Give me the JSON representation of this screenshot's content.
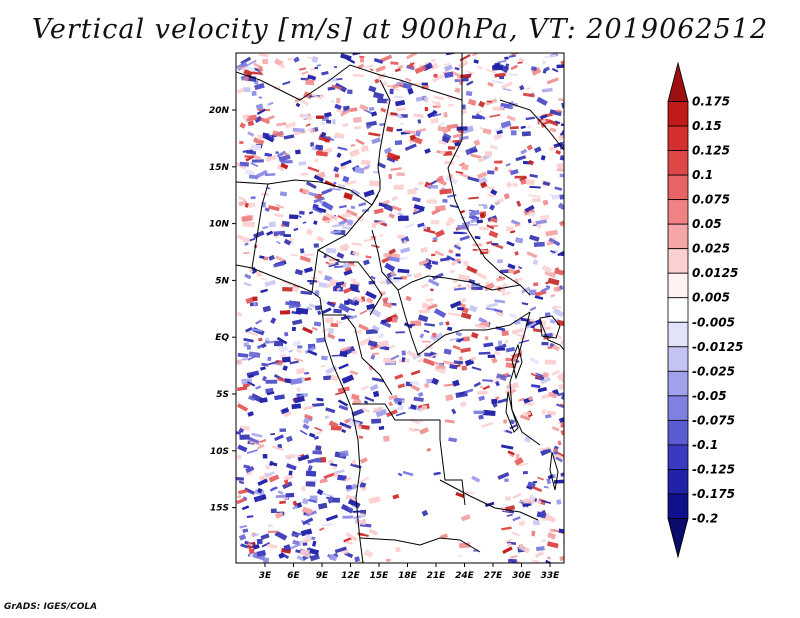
{
  "title": "Vertical velocity [m/s] at 900hPa, VT: 2019062512",
  "credit": "GrADS: IGES/COLA",
  "map": {
    "lon_labels": [
      "3E",
      "6E",
      "9E",
      "12E",
      "15E",
      "18E",
      "21E",
      "24E",
      "27E",
      "30E",
      "33E"
    ],
    "lat_labels": [
      "20N",
      "15N",
      "10N",
      "5N",
      "EQ",
      "5S",
      "10S",
      "15S"
    ]
  },
  "colorbar": {
    "labels": [
      "0.175",
      "0.15",
      "0.125",
      "0.1",
      "0.075",
      "0.05",
      "0.025",
      "0.0125",
      "0.005",
      "-0.005",
      "-0.0125",
      "-0.025",
      "-0.05",
      "-0.075",
      "-0.1",
      "-0.125",
      "-0.175",
      "-0.2"
    ],
    "colors": [
      "#9e1010",
      "#c01a1a",
      "#d43030",
      "#e04848",
      "#e86464",
      "#ef8282",
      "#f5a6a6",
      "#fbd0d0",
      "#fff2f2",
      "#ffffff",
      "#e2e2fb",
      "#c4c4f4",
      "#a2a2ec",
      "#8080e0",
      "#5c5cd2",
      "#3a3ac0",
      "#2222a8",
      "#10108c",
      "#0b0b6e"
    ]
  }
}
